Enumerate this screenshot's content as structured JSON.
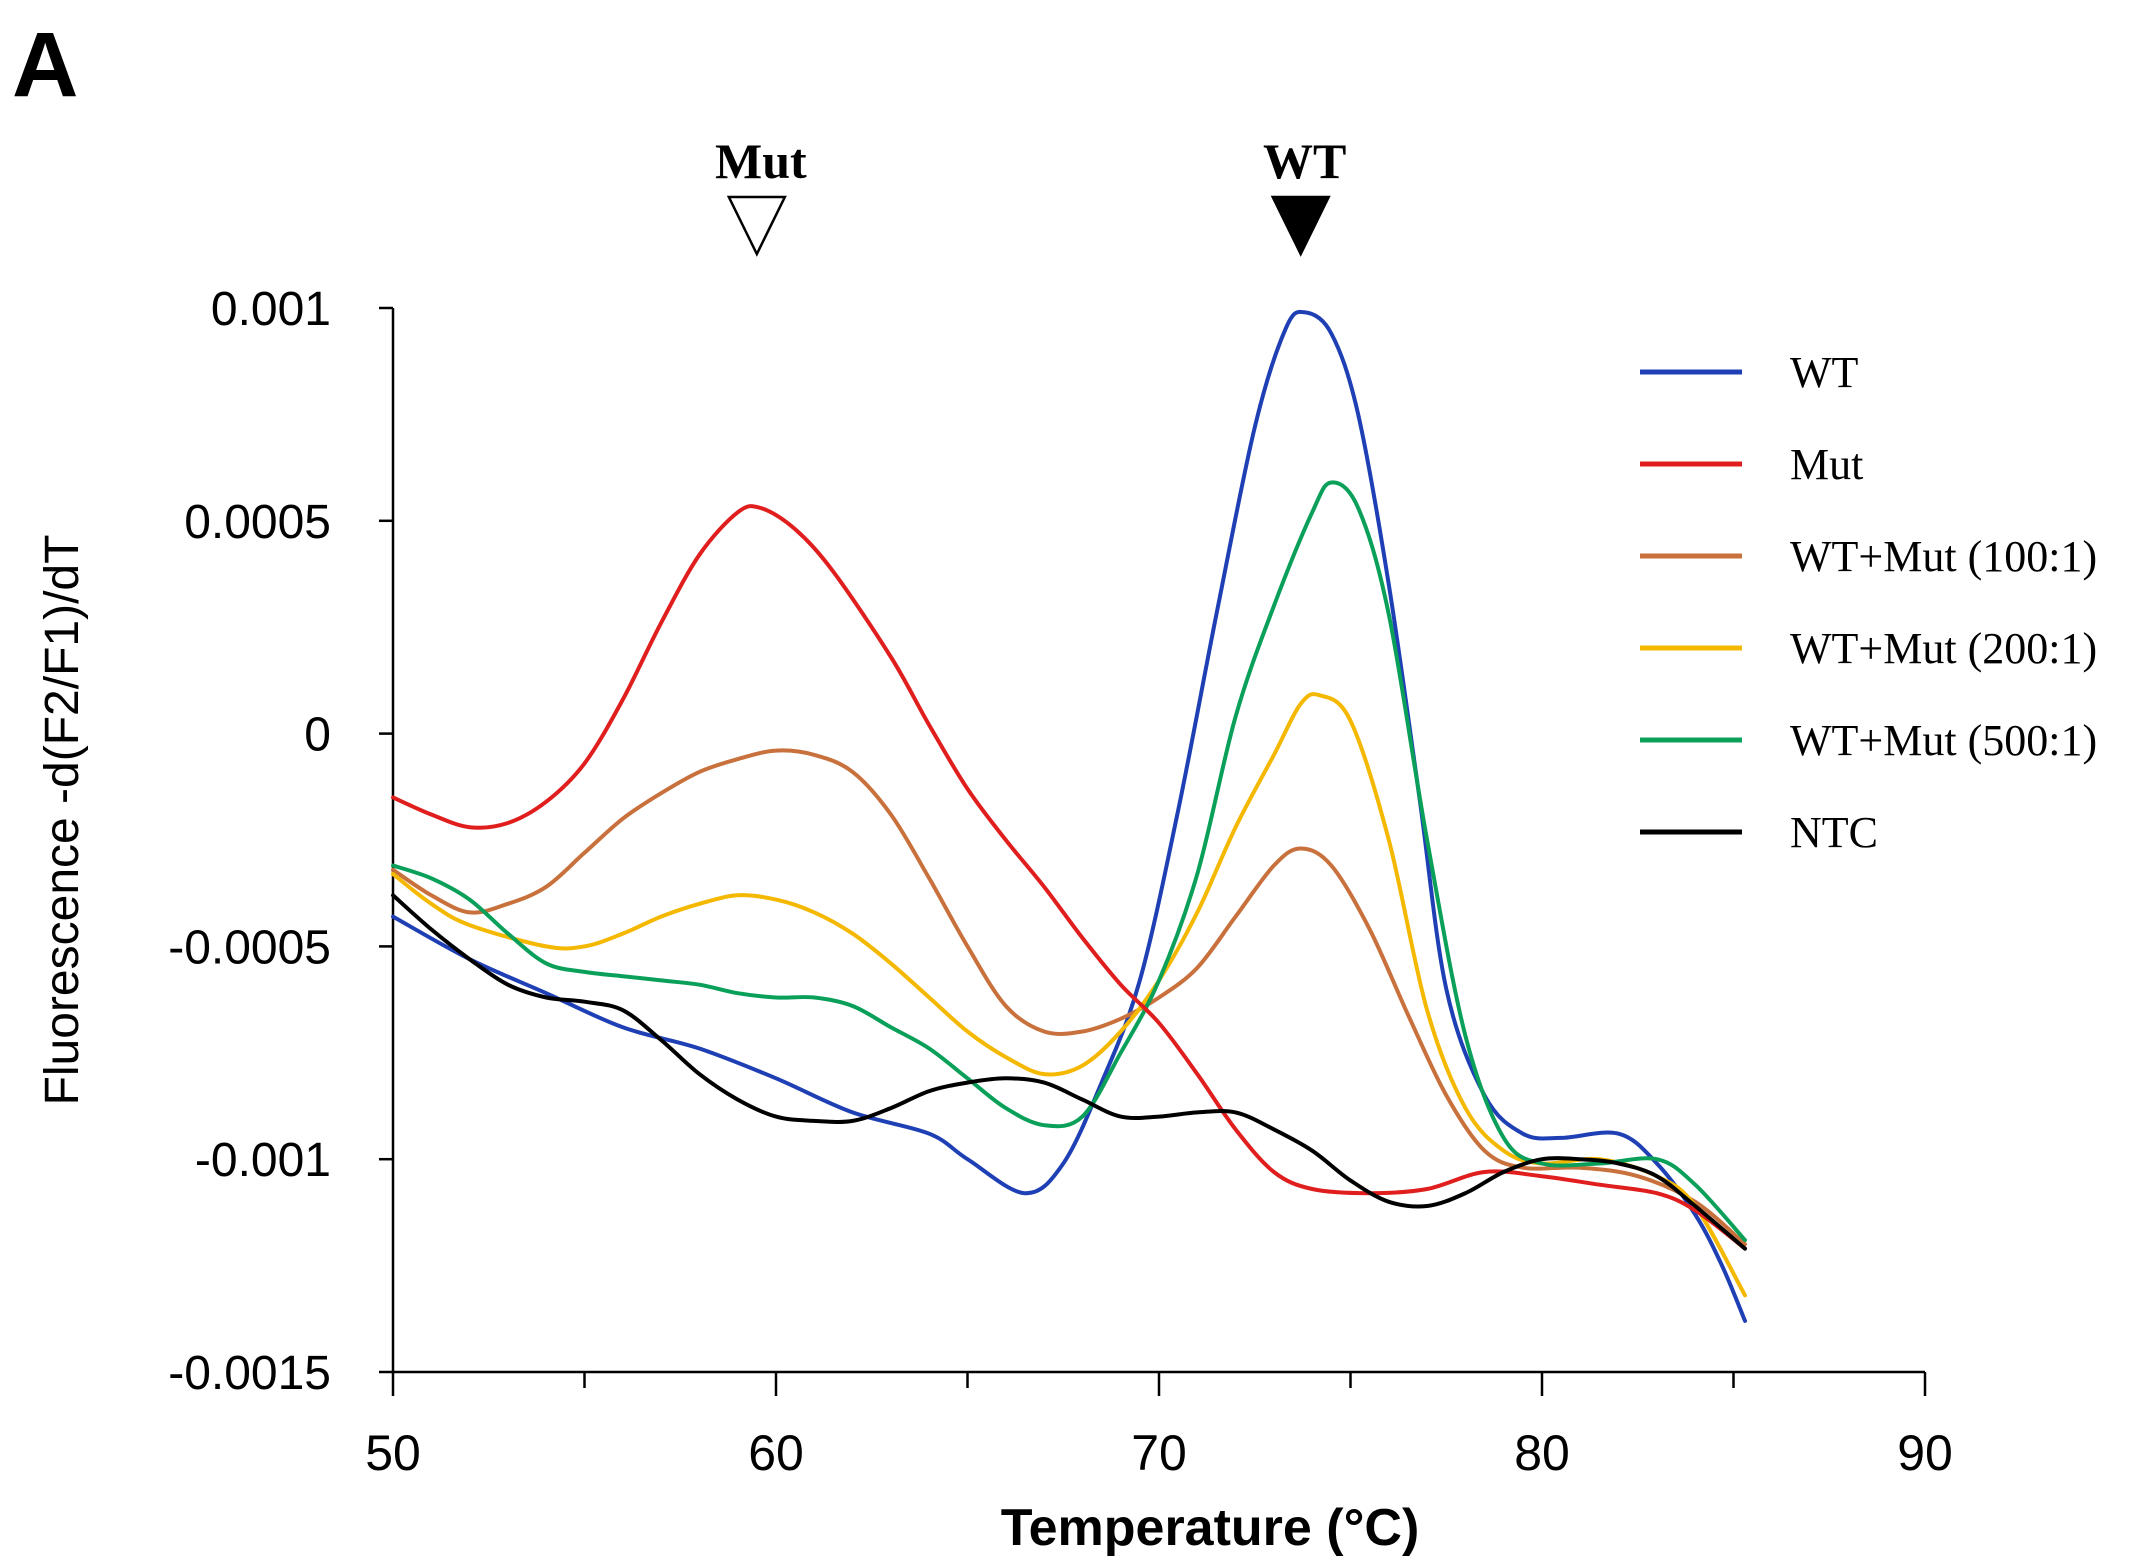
{
  "panel_label": "A",
  "chart_data": {
    "type": "line",
    "title": "",
    "xlabel": "Temperature (°C)",
    "ylabel": "Fluorescence -d(F2/F1)/dT",
    "xlim": [
      50,
      90
    ],
    "ylim": [
      -0.0015,
      0.001
    ],
    "x_ticks": [
      50,
      60,
      70,
      80,
      90
    ],
    "x_tick_labels": [
      "50",
      "60",
      "70",
      "80",
      "90"
    ],
    "y_ticks": [
      0.001,
      0.0005,
      0,
      -0.0005,
      -0.001,
      -0.0015
    ],
    "y_tick_labels": [
      "0.001",
      "0.0005",
      "0",
      "-0.0005",
      "-0.001",
      "-0.0015"
    ],
    "grid": false,
    "legend_position": "right",
    "annotations": [
      {
        "label": "Mut",
        "x": 59.5,
        "marker": "open-triangle-down"
      },
      {
        "label": "WT",
        "x": 73.7,
        "marker": "filled-triangle-down"
      }
    ],
    "series": [
      {
        "name": "WT",
        "color": "#1f3fb4",
        "points": [
          [
            50,
            -0.00043
          ],
          [
            52,
            -0.00053
          ],
          [
            54,
            -0.00061
          ],
          [
            56,
            -0.00069
          ],
          [
            58,
            -0.00074
          ],
          [
            60,
            -0.00081
          ],
          [
            62,
            -0.00089
          ],
          [
            64,
            -0.00094
          ],
          [
            65,
            -0.001
          ],
          [
            66.5,
            -0.00108
          ],
          [
            67.5,
            -0.00101
          ],
          [
            68.5,
            -0.00082
          ],
          [
            69.5,
            -0.00058
          ],
          [
            70.5,
            -0.00018
          ],
          [
            71.5,
            0.00028
          ],
          [
            72.5,
            0.00072
          ],
          [
            73.3,
            0.00095
          ],
          [
            73.8,
            0.00099
          ],
          [
            74.5,
            0.00094
          ],
          [
            75.2,
            0.00075
          ],
          [
            76,
            0.00035
          ],
          [
            76.8,
            -0.00015
          ],
          [
            77.5,
            -0.0006
          ],
          [
            78.5,
            -0.00085
          ],
          [
            79.5,
            -0.00094
          ],
          [
            80.5,
            -0.00095
          ],
          [
            82,
            -0.00094
          ],
          [
            83,
            -0.00101
          ],
          [
            84,
            -0.00113
          ],
          [
            84.7,
            -0.00125
          ],
          [
            85.3,
            -0.00138
          ]
        ]
      },
      {
        "name": "Mut",
        "color": "#e01e1e",
        "points": [
          [
            50,
            -0.00015
          ],
          [
            51,
            -0.00019
          ],
          [
            52,
            -0.00022
          ],
          [
            53,
            -0.00021
          ],
          [
            54,
            -0.00016
          ],
          [
            55,
            -7e-05
          ],
          [
            56,
            8e-05
          ],
          [
            57,
            0.00026
          ],
          [
            58,
            0.00042
          ],
          [
            59,
            0.00052
          ],
          [
            59.6,
            0.00053
          ],
          [
            60.5,
            0.00048
          ],
          [
            61.5,
            0.00038
          ],
          [
            63,
            0.00018
          ],
          [
            64,
            2e-05
          ],
          [
            65,
            -0.00013
          ],
          [
            66,
            -0.00025
          ],
          [
            67,
            -0.00036
          ],
          [
            68,
            -0.00048
          ],
          [
            69,
            -0.00059
          ],
          [
            70,
            -0.00068
          ],
          [
            71,
            -0.0008
          ],
          [
            72,
            -0.00093
          ],
          [
            73,
            -0.00103
          ],
          [
            74,
            -0.00107
          ],
          [
            75.5,
            -0.00108
          ],
          [
            77,
            -0.00107
          ],
          [
            78.5,
            -0.00103
          ],
          [
            80,
            -0.00104
          ],
          [
            81.5,
            -0.00106
          ],
          [
            83,
            -0.00108
          ],
          [
            84,
            -0.00112
          ],
          [
            85.3,
            -0.00121
          ]
        ]
      },
      {
        "name": "WT+Mut (100:1)",
        "color": "#c8713c",
        "points": [
          [
            50,
            -0.00032
          ],
          [
            51,
            -0.00038
          ],
          [
            52,
            -0.00042
          ],
          [
            53,
            -0.0004
          ],
          [
            54,
            -0.00036
          ],
          [
            55,
            -0.00028
          ],
          [
            56,
            -0.0002
          ],
          [
            57,
            -0.00014
          ],
          [
            58,
            -9e-05
          ],
          [
            59,
            -6e-05
          ],
          [
            60,
            -4e-05
          ],
          [
            61,
            -5e-05
          ],
          [
            62,
            -9e-05
          ],
          [
            63,
            -0.00019
          ],
          [
            64,
            -0.00034
          ],
          [
            65,
            -0.0005
          ],
          [
            66,
            -0.00064
          ],
          [
            67,
            -0.0007
          ],
          [
            68,
            -0.0007
          ],
          [
            69,
            -0.00067
          ],
          [
            70,
            -0.00062
          ],
          [
            71,
            -0.00055
          ],
          [
            72,
            -0.00043
          ],
          [
            73,
            -0.00031
          ],
          [
            73.7,
            -0.00027
          ],
          [
            74.5,
            -0.00031
          ],
          [
            75.5,
            -0.00046
          ],
          [
            76.5,
            -0.00066
          ],
          [
            77.5,
            -0.00085
          ],
          [
            78.5,
            -0.00098
          ],
          [
            79.5,
            -0.00102
          ],
          [
            81,
            -0.00102
          ],
          [
            82.5,
            -0.00104
          ],
          [
            84,
            -0.0011
          ],
          [
            85.3,
            -0.0012
          ]
        ]
      },
      {
        "name": "WT+Mut (200:1)",
        "color": "#f5b800",
        "points": [
          [
            50,
            -0.00033
          ],
          [
            51,
            -0.0004
          ],
          [
            52,
            -0.00045
          ],
          [
            54,
            -0.0005
          ],
          [
            55,
            -0.0005
          ],
          [
            56,
            -0.00047
          ],
          [
            57,
            -0.00043
          ],
          [
            58,
            -0.0004
          ],
          [
            59,
            -0.00038
          ],
          [
            60,
            -0.00039
          ],
          [
            61,
            -0.00042
          ],
          [
            62,
            -0.00047
          ],
          [
            63,
            -0.00054
          ],
          [
            64,
            -0.00062
          ],
          [
            65,
            -0.0007
          ],
          [
            66,
            -0.00076
          ],
          [
            67,
            -0.0008
          ],
          [
            68,
            -0.00078
          ],
          [
            69,
            -0.0007
          ],
          [
            70,
            -0.00058
          ],
          [
            71,
            -0.00042
          ],
          [
            72,
            -0.00022
          ],
          [
            73,
            -5e-05
          ],
          [
            73.7,
            7e-05
          ],
          [
            74.2,
            9e-05
          ],
          [
            75,
            3e-05
          ],
          [
            76,
            -0.00025
          ],
          [
            77,
            -0.00065
          ],
          [
            78,
            -0.00088
          ],
          [
            79,
            -0.00098
          ],
          [
            80,
            -0.00101
          ],
          [
            81.5,
            -0.001
          ],
          [
            83,
            -0.00104
          ],
          [
            84,
            -0.00111
          ],
          [
            85.3,
            -0.00132
          ]
        ]
      },
      {
        "name": "WT+Mut (500:1)",
        "color": "#0aa05a",
        "points": [
          [
            50,
            -0.00031
          ],
          [
            51,
            -0.00034
          ],
          [
            52,
            -0.00039
          ],
          [
            53,
            -0.00047
          ],
          [
            54,
            -0.00054
          ],
          [
            55,
            -0.00056
          ],
          [
            56,
            -0.00057
          ],
          [
            57,
            -0.00058
          ],
          [
            58,
            -0.00059
          ],
          [
            59,
            -0.00061
          ],
          [
            60,
            -0.00062
          ],
          [
            61,
            -0.00062
          ],
          [
            62,
            -0.00064
          ],
          [
            63,
            -0.00069
          ],
          [
            64,
            -0.00074
          ],
          [
            65,
            -0.00081
          ],
          [
            66,
            -0.00088
          ],
          [
            67,
            -0.00092
          ],
          [
            68,
            -0.0009
          ],
          [
            69,
            -0.00075
          ],
          [
            70,
            -0.00058
          ],
          [
            71,
            -0.00033
          ],
          [
            72,
            4e-05
          ],
          [
            73,
            0.0003
          ],
          [
            74,
            0.00052
          ],
          [
            74.5,
            0.00059
          ],
          [
            75.2,
            0.00053
          ],
          [
            76,
            0.00028
          ],
          [
            77,
            -0.00025
          ],
          [
            78,
            -0.00071
          ],
          [
            79,
            -0.00095
          ],
          [
            80,
            -0.00101
          ],
          [
            81.5,
            -0.00101
          ],
          [
            83,
            -0.001
          ],
          [
            84,
            -0.00106
          ],
          [
            85.3,
            -0.00119
          ]
        ]
      },
      {
        "name": "NTC",
        "color": "#000000",
        "points": [
          [
            50,
            -0.00038
          ],
          [
            51,
            -0.00046
          ],
          [
            52,
            -0.00053
          ],
          [
            53,
            -0.00059
          ],
          [
            54,
            -0.00062
          ],
          [
            55,
            -0.00063
          ],
          [
            56,
            -0.00065
          ],
          [
            57,
            -0.00072
          ],
          [
            58,
            -0.0008
          ],
          [
            59,
            -0.00086
          ],
          [
            60,
            -0.0009
          ],
          [
            61,
            -0.00091
          ],
          [
            62,
            -0.00091
          ],
          [
            63,
            -0.00088
          ],
          [
            64,
            -0.00084
          ],
          [
            65,
            -0.00082
          ],
          [
            66,
            -0.00081
          ],
          [
            67,
            -0.00082
          ],
          [
            68,
            -0.00086
          ],
          [
            69,
            -0.0009
          ],
          [
            70,
            -0.0009
          ],
          [
            71,
            -0.00089
          ],
          [
            72,
            -0.00089
          ],
          [
            73,
            -0.00093
          ],
          [
            74,
            -0.00098
          ],
          [
            75,
            -0.00105
          ],
          [
            76,
            -0.0011
          ],
          [
            77,
            -0.00111
          ],
          [
            78,
            -0.00108
          ],
          [
            79,
            -0.00103
          ],
          [
            80,
            -0.001
          ],
          [
            81,
            -0.001
          ],
          [
            82,
            -0.00101
          ],
          [
            83,
            -0.00104
          ],
          [
            84,
            -0.00111
          ],
          [
            85.3,
            -0.00121
          ]
        ]
      }
    ]
  }
}
